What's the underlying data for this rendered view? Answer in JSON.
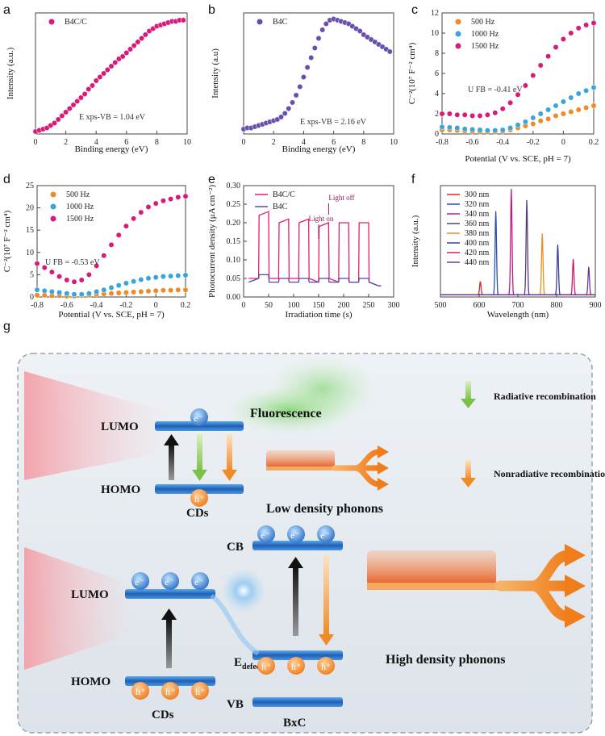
{
  "panels": [
    {
      "id": "a",
      "letter": "a",
      "type": "scatter",
      "xlabel": "Binding energy (eV)",
      "ylabel": "Intensity (a.u.)",
      "xlim": [
        0,
        10
      ],
      "xticks": [
        0,
        2,
        4,
        6,
        8,
        10
      ],
      "yticks": [],
      "legend": [
        {
          "name": "B4C/C",
          "color": "#d81b7a"
        }
      ],
      "annotation": "E xps-VB = 1.04 eV",
      "series": [
        {
          "name": "B4C/C",
          "color": "#d81b7a",
          "ylim": [
            0,
            1
          ],
          "x": [
            0.0,
            0.25,
            0.5,
            0.75,
            1.0,
            1.25,
            1.5,
            1.75,
            2.0,
            2.25,
            2.5,
            2.75,
            3.0,
            3.25,
            3.5,
            3.75,
            4.0,
            4.25,
            4.5,
            4.75,
            5.0,
            5.25,
            5.5,
            5.75,
            6.0,
            6.25,
            6.5,
            6.75,
            7.0,
            7.25,
            7.5,
            7.75,
            8.0,
            8.25,
            8.5,
            8.75,
            9.0,
            9.25,
            9.5,
            9.75
          ],
          "y": [
            0.02,
            0.03,
            0.04,
            0.05,
            0.07,
            0.09,
            0.12,
            0.15,
            0.18,
            0.21,
            0.24,
            0.27,
            0.3,
            0.33,
            0.37,
            0.4,
            0.44,
            0.47,
            0.5,
            0.53,
            0.56,
            0.59,
            0.62,
            0.64,
            0.67,
            0.7,
            0.73,
            0.76,
            0.79,
            0.82,
            0.85,
            0.87,
            0.89,
            0.9,
            0.91,
            0.92,
            0.93,
            0.93,
            0.94,
            0.94
          ]
        }
      ]
    },
    {
      "id": "b",
      "letter": "b",
      "type": "scatter",
      "xlabel": "Binding energy (eV)",
      "ylabel": "Intensity (a.u)",
      "xlim": [
        0,
        10
      ],
      "xticks": [
        0,
        2,
        4,
        6,
        8,
        10
      ],
      "yticks": [],
      "legend": [
        {
          "name": "B4C",
          "color": "#6a4fb0"
        }
      ],
      "annotation": "E xps-VB = 2.16 eV",
      "series": [
        {
          "name": "B4C",
          "color": "#6a4fb0",
          "ylim": [
            0,
            1
          ],
          "x": [
            0.0,
            0.25,
            0.5,
            0.75,
            1.0,
            1.25,
            1.5,
            1.75,
            2.0,
            2.25,
            2.5,
            2.75,
            3.0,
            3.25,
            3.5,
            3.75,
            4.0,
            4.25,
            4.5,
            4.75,
            5.0,
            5.25,
            5.5,
            5.75,
            6.0,
            6.25,
            6.5,
            6.75,
            7.0,
            7.25,
            7.5,
            7.75,
            8.0,
            8.25,
            8.5,
            8.75,
            9.0,
            9.25,
            9.5,
            9.75
          ],
          "y": [
            0.04,
            0.05,
            0.05,
            0.06,
            0.07,
            0.08,
            0.09,
            0.1,
            0.11,
            0.12,
            0.14,
            0.17,
            0.21,
            0.26,
            0.32,
            0.39,
            0.47,
            0.55,
            0.63,
            0.71,
            0.79,
            0.86,
            0.91,
            0.94,
            0.95,
            0.94,
            0.93,
            0.92,
            0.91,
            0.89,
            0.87,
            0.85,
            0.82,
            0.8,
            0.78,
            0.76,
            0.74,
            0.72,
            0.7,
            0.68
          ]
        }
      ]
    },
    {
      "id": "c",
      "letter": "c",
      "type": "scatter",
      "xlabel": "Potential (V vs. SCE, pH = 7)",
      "ylabel": "C⁻²(10⁷ F⁻² cm⁴)",
      "xlim": [
        -0.8,
        0.2
      ],
      "ylim": [
        0,
        12
      ],
      "xticks": [
        -0.8,
        -0.6,
        -0.4,
        -0.2,
        0.0,
        0.2
      ],
      "yticks": [
        0,
        2,
        4,
        6,
        8,
        10,
        12
      ],
      "legend": [
        {
          "name": "500 Hz",
          "color": "#f08a24"
        },
        {
          "name": "1000 Hz",
          "color": "#3aa5dc"
        },
        {
          "name": "1500 Hz",
          "color": "#d81b7a"
        }
      ],
      "annotation": "U FB = -0.41 eV",
      "series": [
        {
          "name": "500 Hz",
          "color": "#f08a24",
          "x": [
            -0.8,
            -0.75,
            -0.7,
            -0.65,
            -0.6,
            -0.55,
            -0.5,
            -0.45,
            -0.4,
            -0.35,
            -0.3,
            -0.25,
            -0.2,
            -0.15,
            -0.1,
            -0.05,
            0.0,
            0.05,
            0.1,
            0.15,
            0.2
          ],
          "y": [
            0.4,
            0.4,
            0.35,
            0.3,
            0.25,
            0.2,
            0.2,
            0.2,
            0.25,
            0.4,
            0.6,
            0.8,
            1.0,
            1.3,
            1.5,
            1.8,
            2.0,
            2.2,
            2.4,
            2.6,
            2.8
          ]
        },
        {
          "name": "1000 Hz",
          "color": "#3aa5dc",
          "x": [
            -0.8,
            -0.75,
            -0.7,
            -0.65,
            -0.6,
            -0.55,
            -0.5,
            -0.45,
            -0.4,
            -0.35,
            -0.3,
            -0.25,
            -0.2,
            -0.15,
            -0.1,
            -0.05,
            0.0,
            0.05,
            0.1,
            0.15,
            0.2
          ],
          "y": [
            0.7,
            0.65,
            0.6,
            0.5,
            0.45,
            0.4,
            0.35,
            0.35,
            0.4,
            0.6,
            0.9,
            1.2,
            1.6,
            2.0,
            2.4,
            2.8,
            3.2,
            3.6,
            4.0,
            4.3,
            4.6
          ]
        },
        {
          "name": "1500 Hz",
          "color": "#d81b7a",
          "x": [
            -0.8,
            -0.75,
            -0.7,
            -0.65,
            -0.6,
            -0.55,
            -0.5,
            -0.45,
            -0.4,
            -0.35,
            -0.3,
            -0.25,
            -0.2,
            -0.15,
            -0.1,
            -0.05,
            0.0,
            0.05,
            0.1,
            0.15,
            0.2
          ],
          "y": [
            2.0,
            2.0,
            1.9,
            1.9,
            1.8,
            1.8,
            1.9,
            2.1,
            2.5,
            3.1,
            3.9,
            4.8,
            5.8,
            6.8,
            7.7,
            8.6,
            9.4,
            10.0,
            10.5,
            10.8,
            11.0
          ]
        }
      ]
    },
    {
      "id": "d",
      "letter": "d",
      "type": "scatter",
      "xlabel": "Potential (V vs. SCE, pH = 7)",
      "ylabel": "C⁻²(10⁷ F⁻² cm⁴)",
      "xlim": [
        -0.8,
        0.2
      ],
      "ylim": [
        0,
        25
      ],
      "xticks": [
        -0.8,
        -0.6,
        -0.4,
        -0.2,
        0.0,
        0.2
      ],
      "yticks": [
        0,
        5,
        10,
        15,
        20,
        25
      ],
      "legend": [
        {
          "name": "500 Hz",
          "color": "#f08a24"
        },
        {
          "name": "1000 Hz",
          "color": "#3aa5dc"
        },
        {
          "name": "1500 Hz",
          "color": "#d81b7a"
        }
      ],
      "annotation": "U FB = -0.53 eV",
      "series": [
        {
          "name": "500 Hz",
          "color": "#f08a24",
          "x": [
            -0.8,
            -0.75,
            -0.7,
            -0.65,
            -0.6,
            -0.55,
            -0.5,
            -0.45,
            -0.4,
            -0.35,
            -0.3,
            -0.25,
            -0.2,
            -0.15,
            -0.1,
            -0.05,
            0.0,
            0.05,
            0.1,
            0.15,
            0.2
          ],
          "y": [
            0.4,
            0.4,
            0.3,
            0.3,
            0.2,
            0.2,
            0.3,
            0.4,
            0.6,
            0.7,
            0.8,
            0.9,
            1.0,
            1.1,
            1.2,
            1.3,
            1.4,
            1.5,
            1.5,
            1.6,
            1.6
          ]
        },
        {
          "name": "1000 Hz",
          "color": "#3aa5dc",
          "x": [
            -0.8,
            -0.75,
            -0.7,
            -0.65,
            -0.6,
            -0.55,
            -0.5,
            -0.45,
            -0.4,
            -0.35,
            -0.3,
            -0.25,
            -0.2,
            -0.15,
            -0.1,
            -0.05,
            0.0,
            0.05,
            0.1,
            0.15,
            0.2
          ],
          "y": [
            1.6,
            1.4,
            1.2,
            1.0,
            0.8,
            0.6,
            0.6,
            0.8,
            1.2,
            1.6,
            2.1,
            2.6,
            3.1,
            3.5,
            3.9,
            4.2,
            4.4,
            4.6,
            4.7,
            4.8,
            4.9
          ]
        },
        {
          "name": "1500 Hz",
          "color": "#d81b7a",
          "x": [
            -0.8,
            -0.75,
            -0.7,
            -0.65,
            -0.6,
            -0.55,
            -0.5,
            -0.45,
            -0.4,
            -0.35,
            -0.3,
            -0.25,
            -0.2,
            -0.15,
            -0.1,
            -0.05,
            0.0,
            0.05,
            0.1,
            0.15,
            0.2
          ],
          "y": [
            7.5,
            6.6,
            5.6,
            4.6,
            3.8,
            3.4,
            3.8,
            5.0,
            7.0,
            9.3,
            11.7,
            13.9,
            15.9,
            17.6,
            19.0,
            20.2,
            21.0,
            21.6,
            22.0,
            22.4,
            22.6
          ]
        }
      ]
    },
    {
      "id": "e",
      "letter": "e",
      "type": "line",
      "xlabel": "Irradiation time (s)",
      "ylabel": "Photocurrent density (μA cm⁻²)",
      "xlim": [
        0,
        300
      ],
      "ylim": [
        0,
        0.3
      ],
      "xticks": [
        0,
        50,
        100,
        150,
        200,
        250,
        300
      ],
      "yticks": [
        0.0,
        0.05,
        0.1,
        0.15,
        0.2,
        0.25,
        0.3
      ],
      "legend": [
        {
          "name": "B4C/C",
          "color": "#e0206e"
        },
        {
          "name": "B4C",
          "color": "#5a45a8"
        }
      ],
      "annotations": [
        "Light on",
        "Light off"
      ],
      "series": [
        {
          "name": "B4C/C",
          "color": "#e0206e",
          "x": [
            10,
            30,
            31,
            50,
            51,
            70,
            71,
            90,
            91,
            110,
            111,
            130,
            131,
            150,
            151,
            170,
            171,
            190,
            191,
            210,
            211,
            230,
            231,
            250,
            251,
            270,
            275
          ],
          "y": [
            0.05,
            0.05,
            0.22,
            0.23,
            0.05,
            0.05,
            0.2,
            0.21,
            0.05,
            0.05,
            0.2,
            0.21,
            0.05,
            0.04,
            0.19,
            0.2,
            0.05,
            0.04,
            0.2,
            0.2,
            0.04,
            0.04,
            0.2,
            0.2,
            0.04,
            0.03,
            0.03
          ]
        },
        {
          "name": "B4C",
          "color": "#5a45a8",
          "x": [
            10,
            30,
            31,
            50,
            51,
            70,
            71,
            90,
            91,
            110,
            111,
            130,
            131,
            150,
            151,
            170,
            171,
            190,
            191,
            210,
            211,
            230,
            231,
            250,
            251,
            270,
            275
          ],
          "y": [
            0.04,
            0.05,
            0.06,
            0.06,
            0.04,
            0.04,
            0.05,
            0.05,
            0.04,
            0.04,
            0.05,
            0.05,
            0.04,
            0.04,
            0.05,
            0.05,
            0.04,
            0.04,
            0.05,
            0.05,
            0.04,
            0.04,
            0.05,
            0.05,
            0.04,
            0.03,
            0.03
          ]
        }
      ]
    },
    {
      "id": "f",
      "letter": "f",
      "type": "line",
      "xlabel": "Wavelength (nm)",
      "ylabel": "Intensity (a.u.)",
      "xlim": [
        500,
        900
      ],
      "xticks": [
        500,
        600,
        700,
        800,
        900
      ],
      "yticks": [],
      "legend": [
        {
          "name": "300 nm",
          "color": "#d42c2c"
        },
        {
          "name": "320 nm",
          "color": "#2f4fa8"
        },
        {
          "name": "340 nm",
          "color": "#c01a8a"
        },
        {
          "name": "360 nm",
          "color": "#5a3a7a"
        },
        {
          "name": "380 nm",
          "color": "#f08a24"
        },
        {
          "name": "400 nm",
          "color": "#3d3d9a"
        },
        {
          "name": "420 nm",
          "color": "#d01c6c"
        },
        {
          "name": "440 nm",
          "color": "#6a3a90"
        }
      ],
      "peaks": [
        {
          "name": "300 nm",
          "color": "#d42c2c",
          "center": 603,
          "height": 0.12
        },
        {
          "name": "320 nm",
          "color": "#2f4fa8",
          "center": 643,
          "height": 0.75
        },
        {
          "name": "340 nm",
          "color": "#c01a8a",
          "center": 683,
          "height": 0.95
        },
        {
          "name": "360 nm",
          "color": "#5a3a7a",
          "center": 723,
          "height": 0.85
        },
        {
          "name": "380 nm",
          "color": "#f08a24",
          "center": 763,
          "height": 0.55
        },
        {
          "name": "400 nm",
          "color": "#3d3d9a",
          "center": 803,
          "height": 0.45
        },
        {
          "name": "420 nm",
          "color": "#d01c6c",
          "center": 843,
          "height": 0.32
        },
        {
          "name": "440 nm",
          "color": "#6a3a90",
          "center": 883,
          "height": 0.25
        }
      ]
    }
  ],
  "schematic": {
    "letter": "g",
    "top": {
      "lumo": "LUMO",
      "homo": "HOMO",
      "cds": "CDs",
      "electron": "e⁻",
      "hole": "h⁺",
      "fluorescence": "Fluorescence",
      "low_phonons": "Low density phonons"
    },
    "legend": {
      "radiative": "Radiative recombination",
      "nonradiative": "Nonradiative recombination"
    },
    "bottom": {
      "lumo": "LUMO",
      "homo": "HOMO",
      "cds": "CDs",
      "cb": "CB",
      "vb": "VB",
      "bxc": "BxC",
      "edefect": "E",
      "edefect_sub": "defect",
      "high_phonons": "High density phonons",
      "electron": "e⁻",
      "hole": "h⁺"
    }
  }
}
